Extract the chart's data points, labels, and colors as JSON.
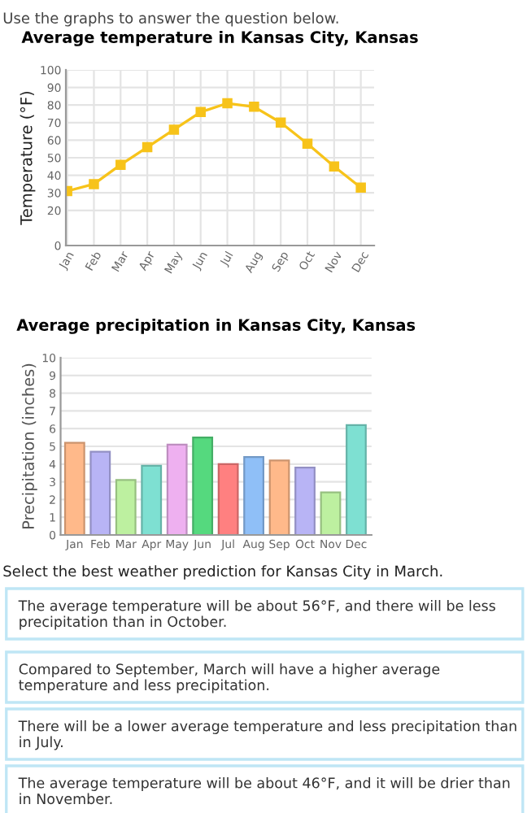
{
  "chart_data": [
    {
      "type": "line",
      "title": "Average temperature in Kansas City, Kansas",
      "ylabel": "Temperature (°F)",
      "annotations": [
        "Use the graphs to answer the question below."
      ],
      "categories": [
        "Jan",
        "Feb",
        "Mar",
        "Apr",
        "May",
        "Jun",
        "Jul",
        "Aug",
        "Sep",
        "Oct",
        "Nov",
        "Dec"
      ],
      "series": [
        {
          "color": "#f7c31a",
          "values": [
            31,
            35,
            46,
            56,
            66,
            76,
            81,
            79,
            70,
            58,
            45,
            33
          ]
        }
      ],
      "ylim": [
        0,
        100
      ],
      "yticks": [
        0,
        20,
        30,
        40,
        50,
        60,
        70,
        80,
        90,
        100
      ],
      "grid": true,
      "marker": "square",
      "line_style": "solid"
    },
    {
      "type": "bar",
      "title": "Average precipitation in Kansas City, Kansas",
      "ylabel": "Precipitation (inches)",
      "categories": [
        "Jan",
        "Feb",
        "Mar",
        "Apr",
        "May",
        "Jun",
        "Jul",
        "Aug",
        "Sep",
        "Oct",
        "Nov",
        "Dec"
      ],
      "values": [
        5.2,
        4.7,
        3.1,
        3.9,
        5.1,
        5.5,
        4.0,
        4.4,
        4.2,
        3.8,
        2.4,
        6.2
      ],
      "colors": [
        "#ffb98a",
        "#b8b4f5",
        "#bdf0a0",
        "#7ee0d2",
        "#eeb0f0",
        "#55d97e",
        "#ff8080",
        "#8fbff7",
        "#ffb98a",
        "#b8b4f5",
        "#bdf0a0",
        "#7ee0d2"
      ],
      "ylim": [
        0,
        10
      ],
      "yticks": [
        0,
        1,
        2,
        3,
        4,
        5,
        6,
        7,
        8,
        9,
        10
      ],
      "grid": "y"
    },
    {
      "type": "other",
      "annotations": [
        "Select the best weather prediction for Kansas City in March.",
        "The average temperature will be about 56°F, and there will be less precipitation than in October.",
        "Compared to September, March will have a higher average temperature and less precipitation.",
        "There will be a lower average temperature and less precipitation than in July.",
        "The average temperature will be about 46°F, and it will be drier than in November."
      ]
    }
  ]
}
